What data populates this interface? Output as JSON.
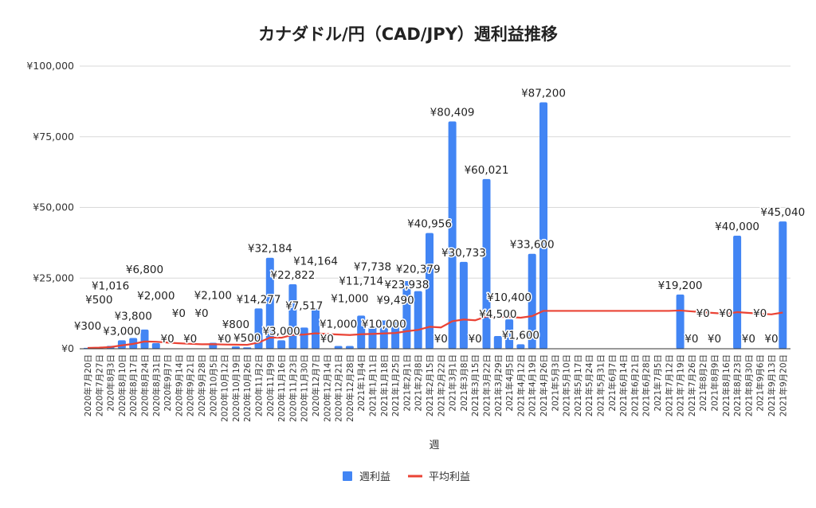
{
  "chart_data": {
    "type": "bar",
    "title": "カナダドル/円（CAD/JPY）週利益推移",
    "xlabel": "週",
    "ylabel": "",
    "ylim": [
      0,
      100000
    ],
    "yticks": [
      "¥0",
      "¥25,000",
      "¥50,000",
      "¥75,000",
      "¥100,000"
    ],
    "ytick_values": [
      0,
      25000,
      50000,
      75000,
      100000
    ],
    "grid": true,
    "legend_position": "bottom",
    "colors": {
      "bar": "#4285f4",
      "line": "#ea4335",
      "grid": "#d9d9d9"
    },
    "categories": [
      "2020年7月20日",
      "2020年7月27日",
      "2020年8月3日",
      "2020年8月10日",
      "2020年8月17日",
      "2020年8月24日",
      "2020年8月31日",
      "2020年9月7日",
      "2020年9月14日",
      "2020年9月21日",
      "2020年9月28日",
      "2020年10月5日",
      "2020年10月12日",
      "2020年10月19日",
      "2020年10月26日",
      "2020年11月2日",
      "2020年11月9日",
      "2020年11月16日",
      "2020年11月23日",
      "2020年11月30日",
      "2020年12月7日",
      "2020年12月14日",
      "2020年12月21日",
      "2020年12月28日",
      "2021年1月4日",
      "2021年1月11日",
      "2021年1月18日",
      "2021年1月25日",
      "2021年2月1日",
      "2021年2月8日",
      "2021年2月15日",
      "2021年2月22日",
      "2021年3月1日",
      "2021年3月8日",
      "2021年3月15日",
      "2021年3月22日",
      "2021年3月29日",
      "2021年4月5日",
      "2021年4月12日",
      "2021年4月19日",
      "2021年4月26日",
      "2021年5月3日",
      "2021年5月10日",
      "2021年5月17日",
      "2021年5月24日",
      "2021年5月31日",
      "2021年6月7日",
      "2021年6月14日",
      "2021年6月21日",
      "2021年6月28日",
      "2021年7月5日",
      "2021年7月12日",
      "2021年7月19日",
      "2021年7月26日",
      "2021年8月2日",
      "2021年8月9日",
      "2021年8月16日",
      "2021年8月23日",
      "2021年8月30日",
      "2021年9月6日",
      "2021年9月13日",
      "2021年9月20日"
    ],
    "series": [
      {
        "name": "週利益",
        "type": "bar",
        "values": [
          300,
          500,
          1016,
          3000,
          3800,
          6800,
          2000,
          0,
          0,
          0,
          0,
          2100,
          0,
          800,
          500,
          14277,
          32184,
          3000,
          22822,
          7517,
          14164,
          0,
          1000,
          1000,
          11714,
          7738,
          10000,
          9490,
          23938,
          20379,
          40956,
          0,
          80409,
          30733,
          0,
          60021,
          4500,
          10400,
          1600,
          33600,
          87200,
          null,
          null,
          null,
          null,
          null,
          null,
          null,
          null,
          null,
          null,
          null,
          19200,
          0,
          0,
          0,
          0,
          40000,
          0,
          0,
          0,
          45040
        ]
      },
      {
        "name": "平均利益",
        "type": "line",
        "values": [
          300,
          400,
          605,
          1204,
          1723,
          2569,
          2488,
          2177,
          1935,
          1742,
          1583,
          1626,
          1501,
          1451,
          1388,
          2193,
          3958,
          3904,
          4900,
          5031,
          5466,
          5217,
          5034,
          4866,
          5140,
          5240,
          5416,
          5562,
          6195,
          6668,
          7774,
          7531,
          9740,
          10357,
          10061,
          11449,
          11261,
          11238,
          10991,
          11556,
          13401,
          13401,
          13401,
          13401,
          13401,
          13401,
          13401,
          13401,
          13401,
          13401,
          13401,
          13401,
          13540,
          13224,
          12924,
          12637,
          12362,
          12950,
          12680,
          12422,
          12173,
          12818
        ]
      }
    ]
  }
}
